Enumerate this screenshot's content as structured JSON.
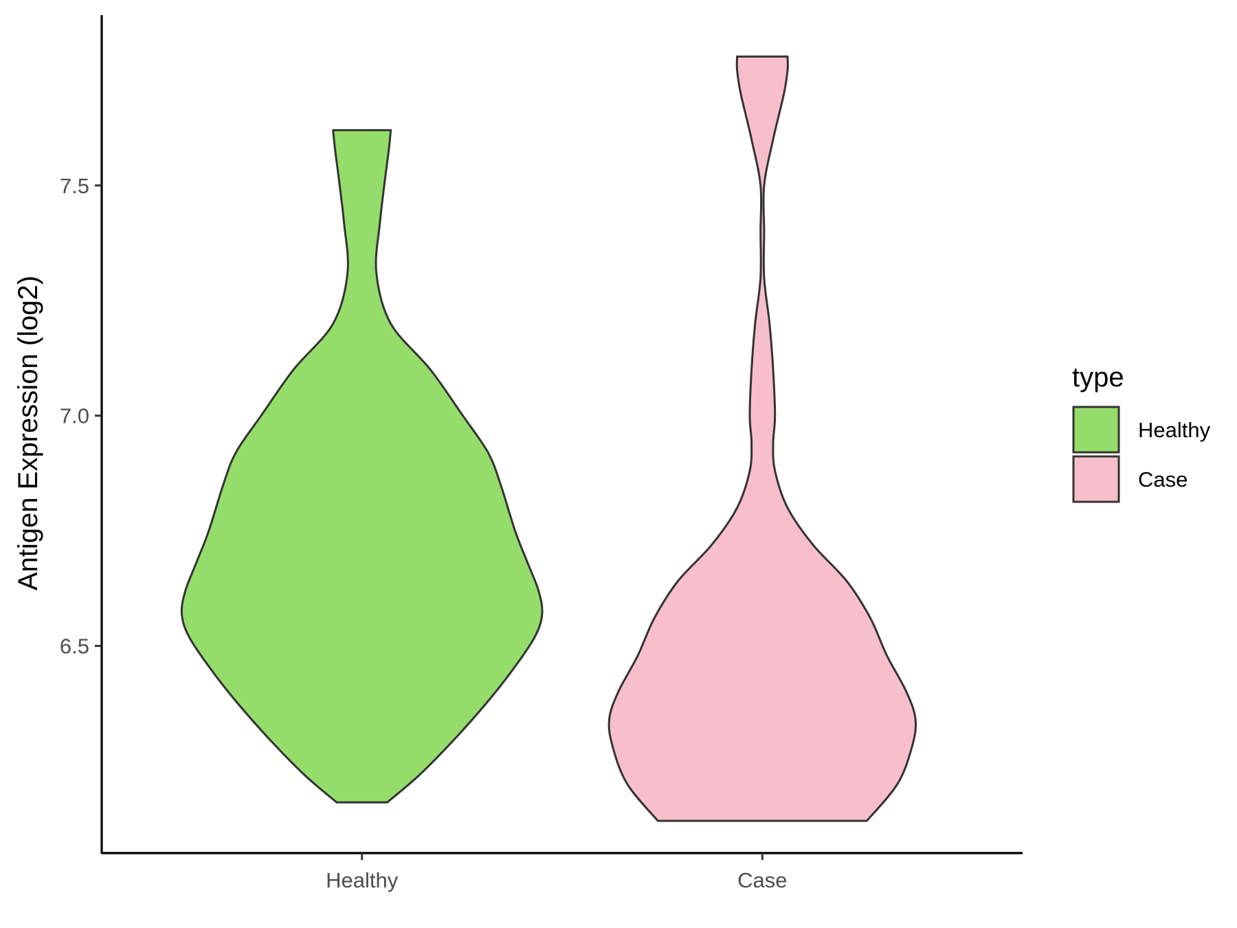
{
  "chart_data": {
    "type": "violin",
    "title": "",
    "xlabel": "",
    "ylabel": "Antigen Expression (log2)",
    "ylim": [
      6.05,
      7.87
    ],
    "y_ticks": [
      "6.5",
      "7.0",
      "7.5"
    ],
    "categories": [
      "Healthy",
      "Case"
    ],
    "grid": false,
    "legend": {
      "title": "type",
      "position": "right",
      "entries": [
        {
          "label": "Healthy",
          "color": "#94dd6a"
        },
        {
          "label": "Case",
          "color": "#f7bfcb"
        }
      ]
    },
    "series": [
      {
        "category": "Healthy",
        "color": "#94dd6a",
        "min": 6.16,
        "max": 7.62,
        "density": [
          [
            6.16,
            0.14
          ],
          [
            6.22,
            0.32
          ],
          [
            6.3,
            0.52
          ],
          [
            6.38,
            0.7
          ],
          [
            6.45,
            0.84
          ],
          [
            6.52,
            0.96
          ],
          [
            6.57,
            1.0
          ],
          [
            6.62,
            0.98
          ],
          [
            6.68,
            0.92
          ],
          [
            6.75,
            0.85
          ],
          [
            6.85,
            0.77
          ],
          [
            6.92,
            0.7
          ],
          [
            7.0,
            0.56
          ],
          [
            7.1,
            0.38
          ],
          [
            7.2,
            0.16
          ],
          [
            7.31,
            0.08
          ],
          [
            7.42,
            0.1
          ],
          [
            7.52,
            0.13
          ],
          [
            7.58,
            0.15
          ],
          [
            7.62,
            0.16
          ]
        ]
      },
      {
        "category": "Case",
        "color": "#f7bfcb",
        "min": 6.12,
        "max": 7.78,
        "density": [
          [
            6.12,
            0.58
          ],
          [
            6.2,
            0.75
          ],
          [
            6.28,
            0.83
          ],
          [
            6.34,
            0.85
          ],
          [
            6.4,
            0.8
          ],
          [
            6.48,
            0.69
          ],
          [
            6.56,
            0.6
          ],
          [
            6.64,
            0.47
          ],
          [
            6.72,
            0.28
          ],
          [
            6.8,
            0.14
          ],
          [
            6.88,
            0.07
          ],
          [
            6.94,
            0.06
          ],
          [
            7.0,
            0.07
          ],
          [
            7.1,
            0.06
          ],
          [
            7.2,
            0.04
          ],
          [
            7.3,
            0.01
          ],
          [
            7.4,
            0.01
          ],
          [
            7.5,
            0.01
          ],
          [
            7.6,
            0.06
          ],
          [
            7.7,
            0.12
          ],
          [
            7.75,
            0.14
          ],
          [
            7.78,
            0.14
          ]
        ]
      }
    ]
  }
}
